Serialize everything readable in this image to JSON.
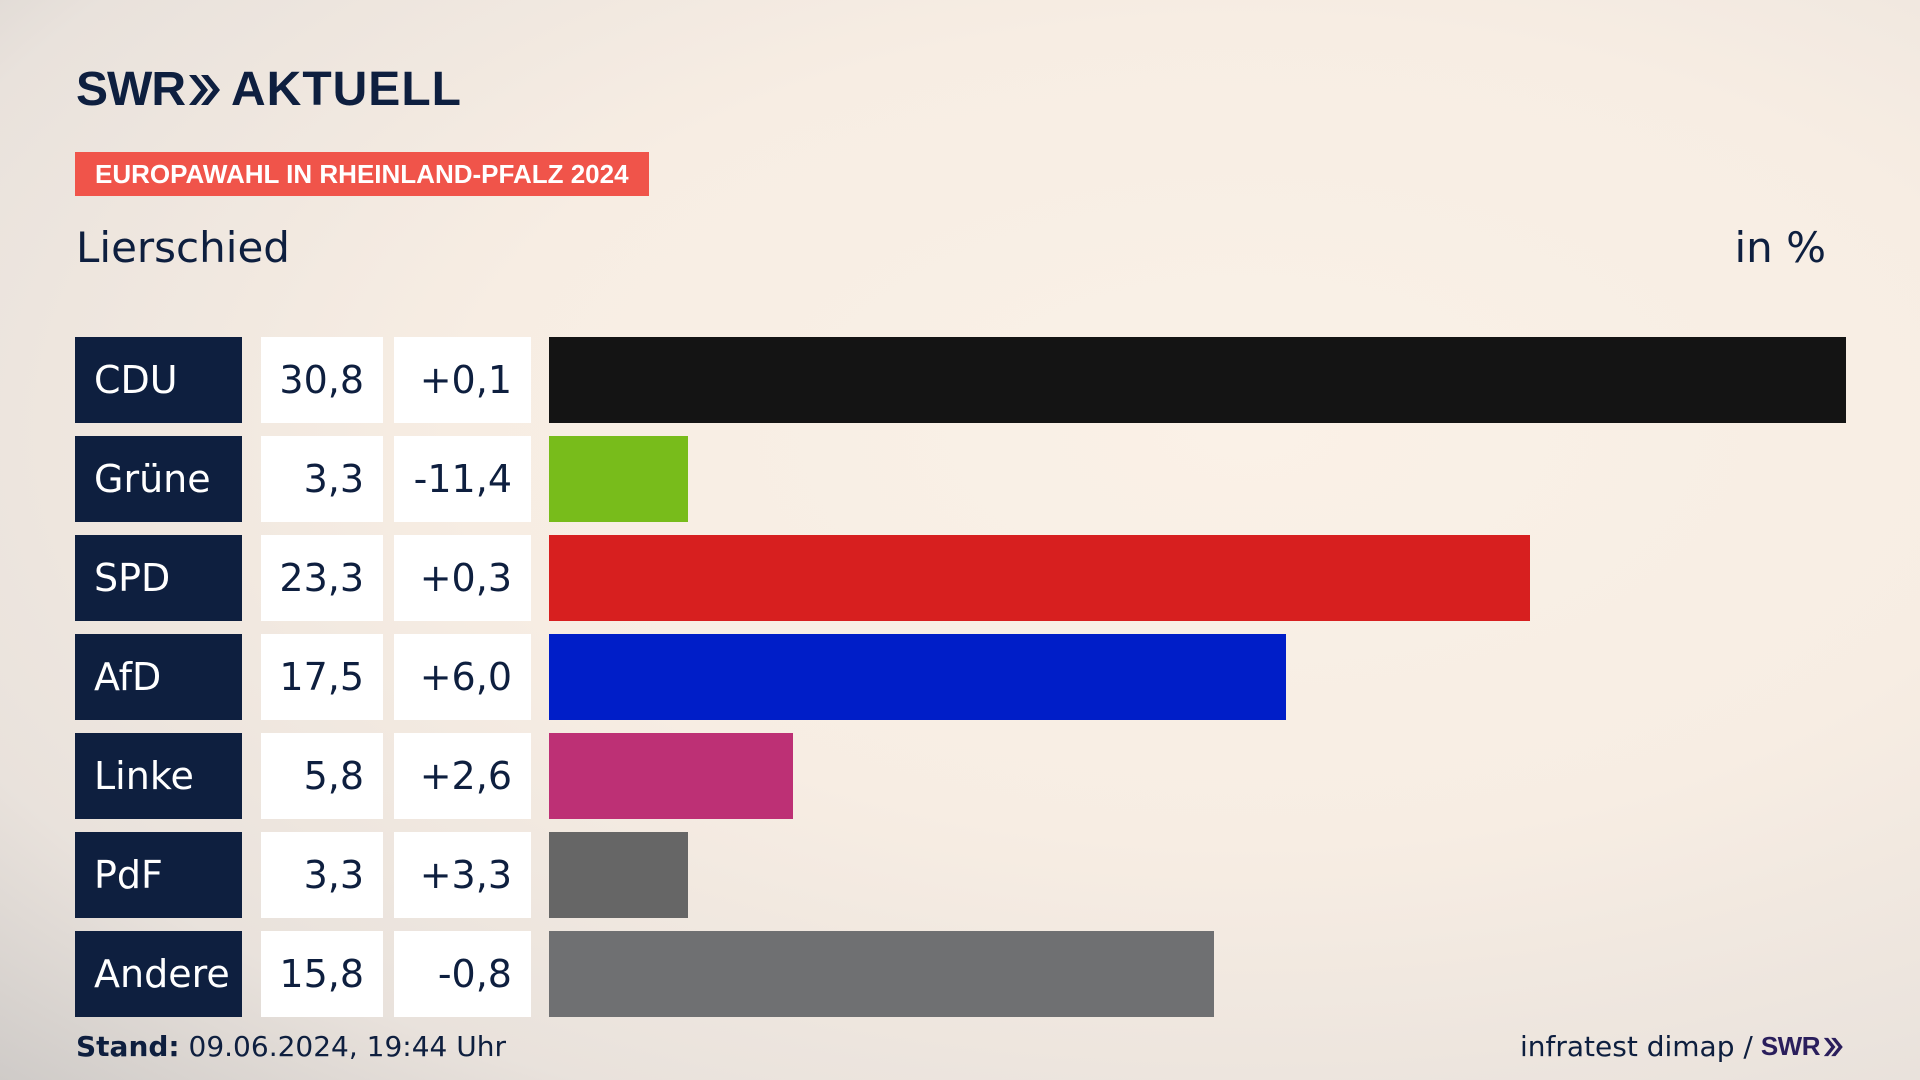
{
  "brand": {
    "logo_left": "SWR",
    "logo_right": "AKTUELL"
  },
  "header": {
    "tag": "EUROPAWAHL IN RHEINLAND-PFALZ 2024",
    "place": "Lierschied",
    "unit": "in %"
  },
  "colors": {
    "tag_bg": "#f0544a",
    "party_bg": "#0e1f3f"
  },
  "chart_data": {
    "type": "bar",
    "orientation": "horizontal",
    "title": "Lierschied",
    "unit": "in %",
    "categories": [
      "CDU",
      "Grüne",
      "SPD",
      "AfD",
      "Linke",
      "PdF",
      "Andere"
    ],
    "values": [
      30.8,
      3.3,
      23.3,
      17.5,
      5.8,
      3.3,
      15.8
    ],
    "value_labels": [
      "30,8",
      "3,3",
      "23,3",
      "17,5",
      "5,8",
      "3,3",
      "15,8"
    ],
    "diff_labels": [
      "+0,1",
      "-11,4",
      "+0,3",
      "+6,0",
      "+2,6",
      "+3,3",
      "-0,8"
    ],
    "colors": [
      "#141414",
      "#78bc1b",
      "#d71f1f",
      "#001ec8",
      "#bd3075",
      "#666666",
      "#6f7072"
    ],
    "xlim": [
      0,
      30.8
    ]
  },
  "footer": {
    "stand_label": "Stand:",
    "stand_value": "09.06.2024, 19:44 Uhr",
    "source": "infratest dimap /",
    "source_logo": "SWR"
  }
}
